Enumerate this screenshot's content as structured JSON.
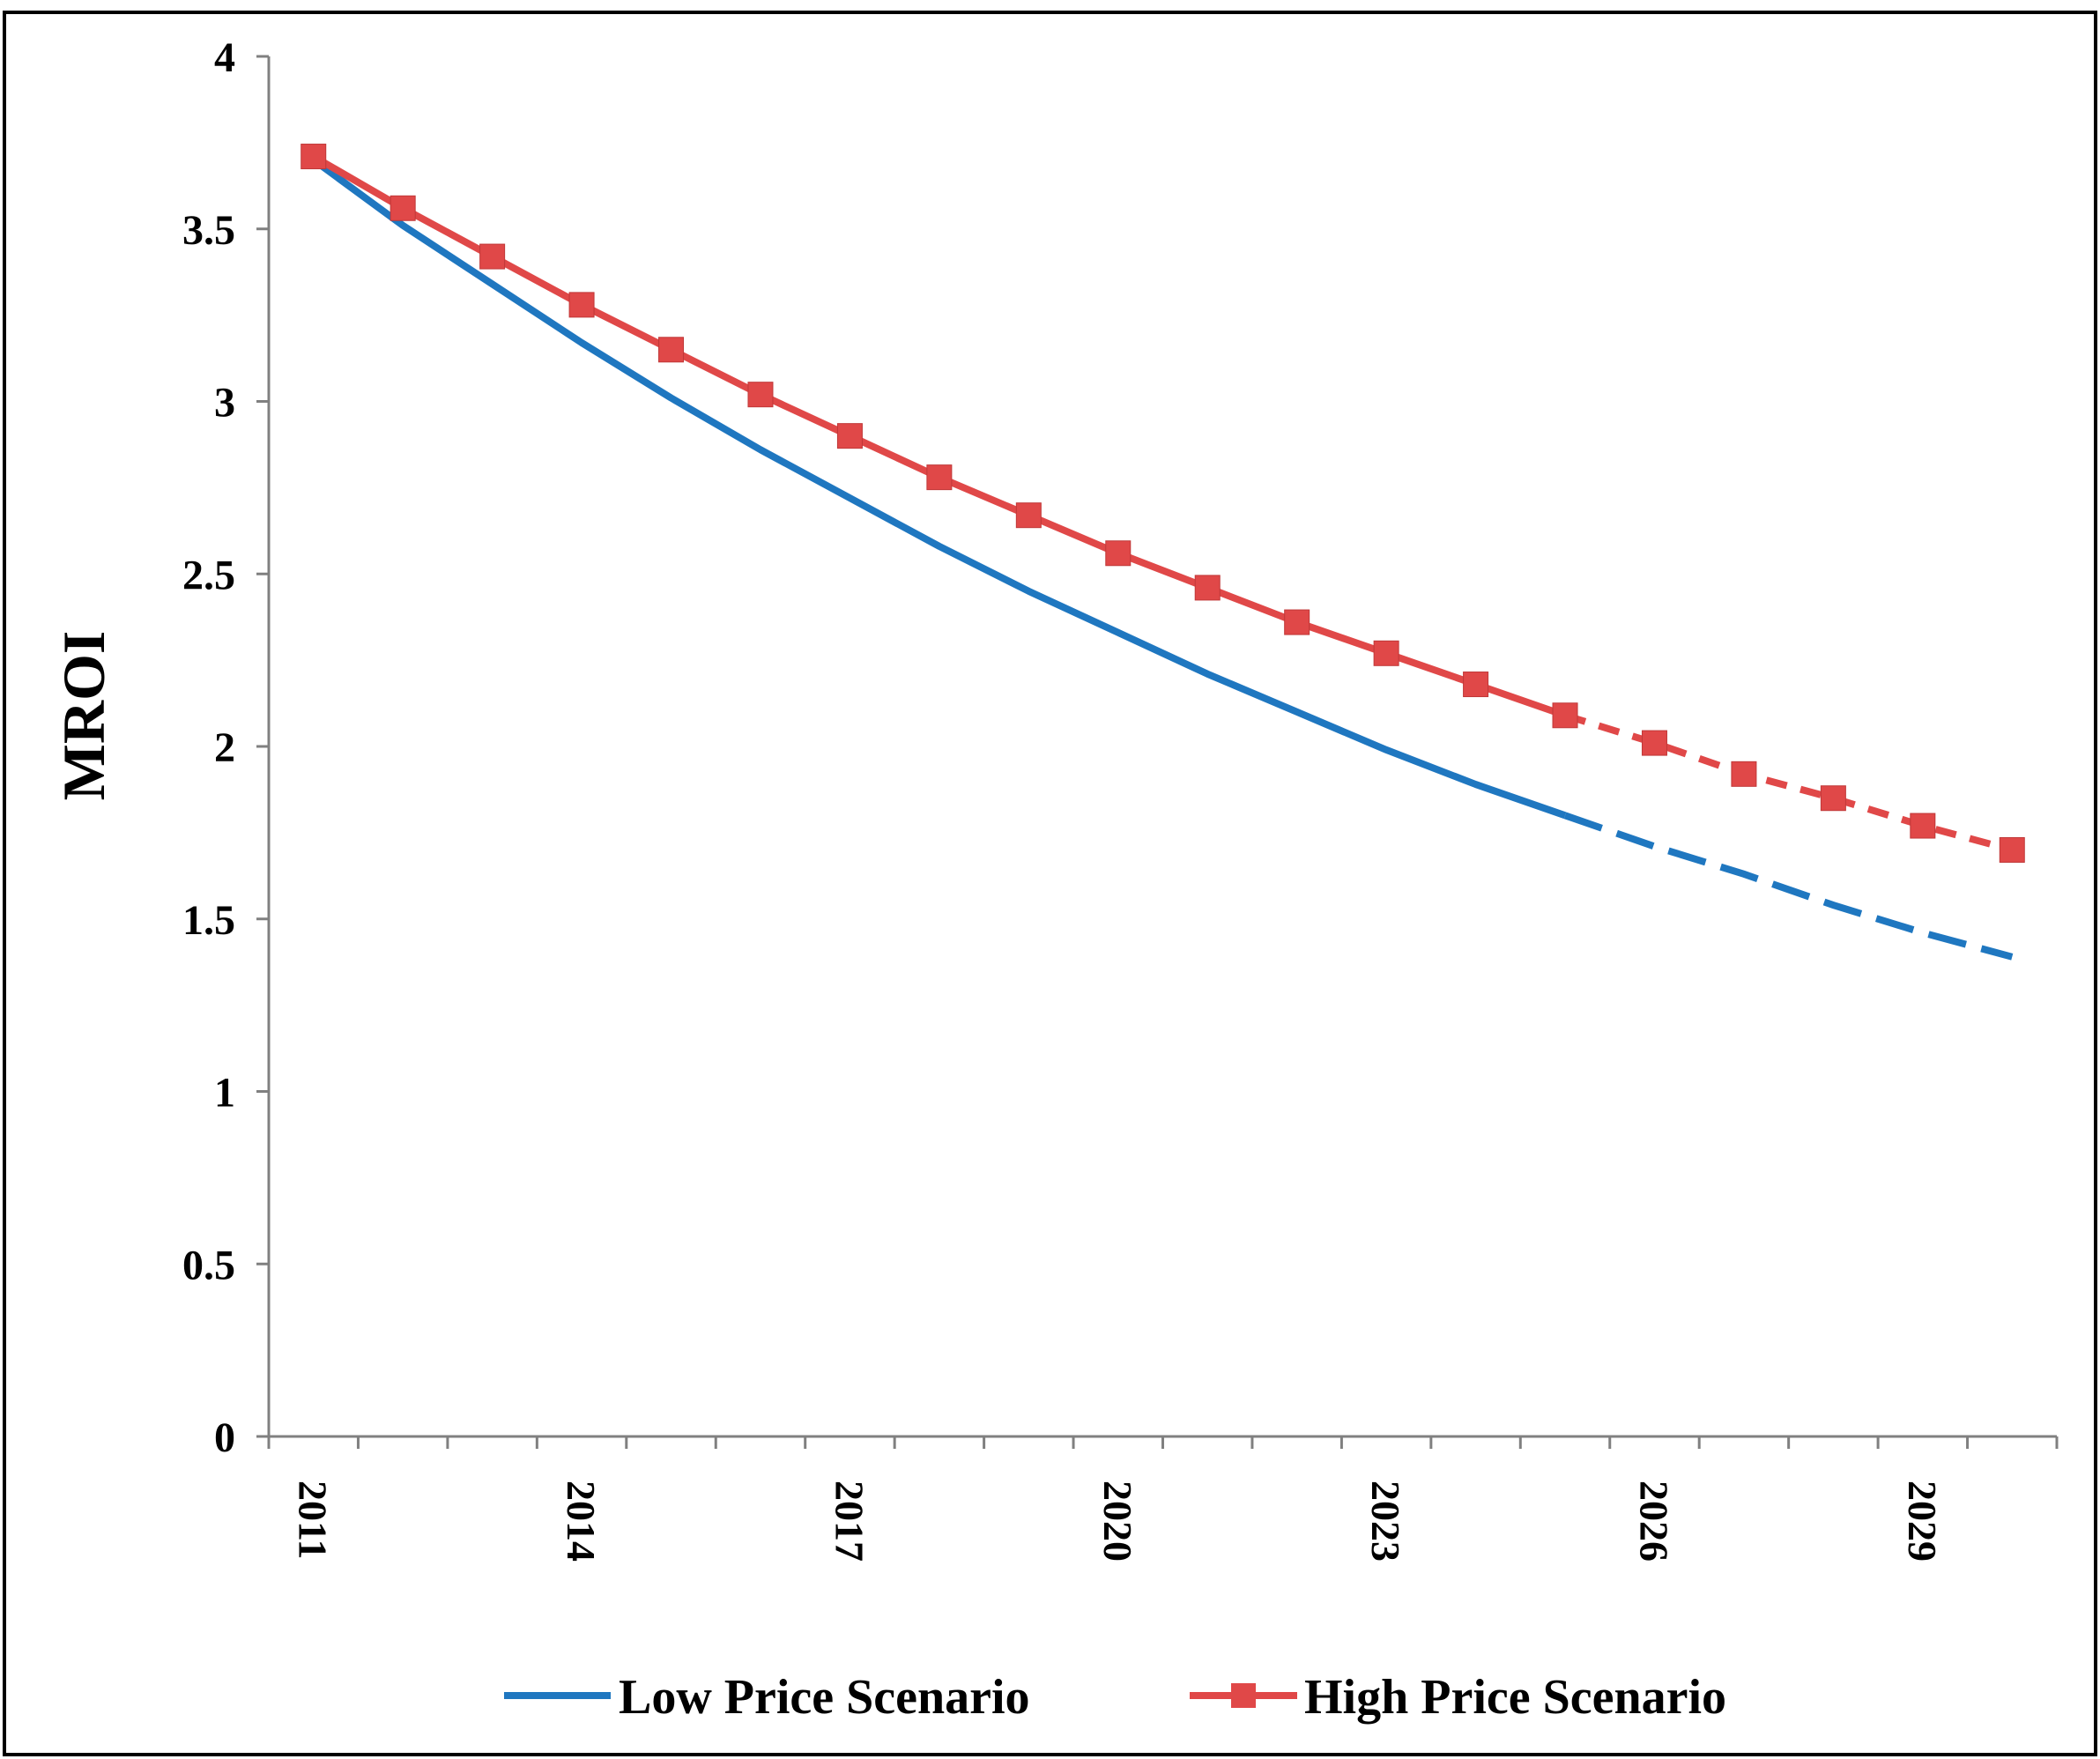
{
  "chart_data": {
    "type": "line",
    "title": "",
    "xlabel": "",
    "ylabel": "MROI",
    "ylim": [
      0,
      4
    ],
    "yticks": [
      0,
      0.5,
      1,
      1.5,
      2,
      2.5,
      3,
      3.5,
      4
    ],
    "ytick_labels": [
      "0",
      "0.5",
      "1",
      "1.5",
      "2",
      "2.5",
      "3",
      "3.5",
      "4"
    ],
    "x": [
      2011,
      2012,
      2013,
      2014,
      2015,
      2016,
      2017,
      2018,
      2019,
      2020,
      2021,
      2022,
      2023,
      2024,
      2025,
      2026,
      2027,
      2028,
      2029,
      2030
    ],
    "xtick_labels": [
      "2011",
      "2014",
      "2017",
      "2020",
      "2023",
      "2026",
      "2029"
    ],
    "xtick_label_years": [
      2011,
      2014,
      2017,
      2020,
      2023,
      2026,
      2029
    ],
    "projection_start": 2025,
    "grid": false,
    "legend_position": "bottom",
    "series": [
      {
        "name": "Low Price Scenario",
        "color": "#1f77c0",
        "marker": "none",
        "values": [
          3.7,
          3.51,
          3.34,
          3.17,
          3.01,
          2.86,
          2.72,
          2.58,
          2.45,
          2.33,
          2.21,
          2.1,
          1.99,
          1.89,
          1.8,
          1.71,
          1.63,
          1.54,
          1.46,
          1.39
        ]
      },
      {
        "name": "High Price Scenario",
        "color": "#e04848",
        "marker": "square",
        "values": [
          3.71,
          3.56,
          3.42,
          3.28,
          3.15,
          3.02,
          2.9,
          2.78,
          2.67,
          2.56,
          2.46,
          2.36,
          2.27,
          2.18,
          2.09,
          2.01,
          1.92,
          1.85,
          1.77,
          1.7
        ]
      }
    ]
  }
}
